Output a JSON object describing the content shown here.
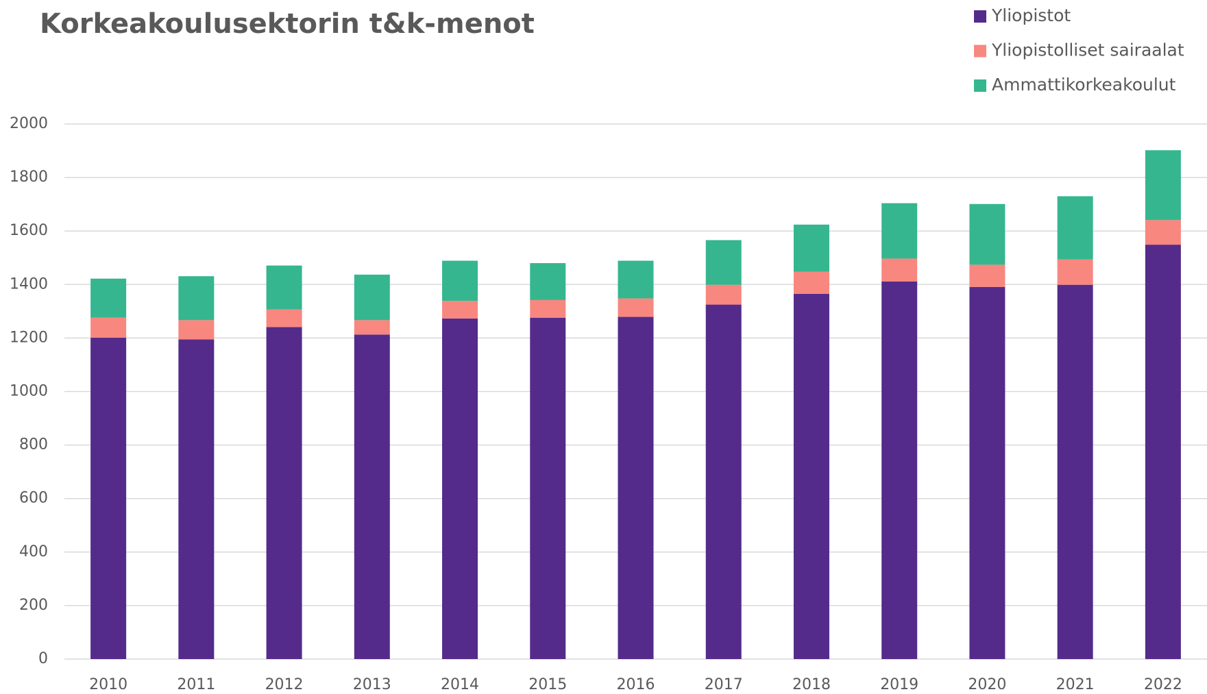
{
  "chart_data": {
    "type": "stacked_bar",
    "title": "Korkeakoulusektorin t&k-menot",
    "categories": [
      "2010",
      "2011",
      "2012",
      "2013",
      "2014",
      "2015",
      "2016",
      "2017",
      "2018",
      "2019",
      "2020",
      "2021",
      "2022"
    ],
    "series": [
      {
        "name": "Yliopistot",
        "color": "#542b8a",
        "values": [
          1201,
          1195,
          1241,
          1213,
          1273,
          1276,
          1279,
          1325,
          1365,
          1411,
          1391,
          1399,
          1549
        ]
      },
      {
        "name": "Yliopistolliset sairaalat",
        "color": "#f7877f",
        "values": [
          75,
          72,
          66,
          54,
          66,
          66,
          69,
          74,
          83,
          86,
          83,
          95,
          92
        ]
      },
      {
        "name": "Ammattikorkeakoulut",
        "color": "#35b68f",
        "values": [
          146,
          164,
          164,
          170,
          150,
          138,
          141,
          167,
          176,
          207,
          227,
          236,
          261
        ]
      }
    ],
    "ylim": [
      0,
      2000
    ],
    "yticks": [
      0,
      200,
      400,
      600,
      800,
      1000,
      1200,
      1400,
      1600,
      1800,
      2000
    ],
    "grid": true,
    "legend": "top-right"
  }
}
